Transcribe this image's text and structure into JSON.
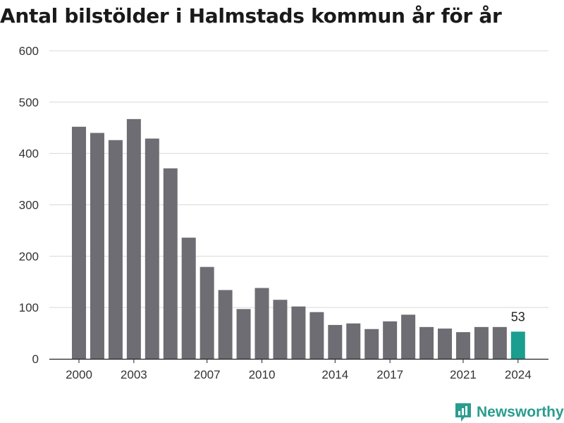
{
  "chart_data": {
    "type": "bar",
    "title": "Antal bilstölder i Halmstads kommun år för år",
    "xlabel": "",
    "ylabel": "",
    "ylim": [
      0,
      600
    ],
    "yticks": [
      "0",
      "100",
      "200",
      "300",
      "400",
      "500",
      "600"
    ],
    "xtick_labels": [
      "2000",
      "2003",
      "2007",
      "2010",
      "2014",
      "2017",
      "2021",
      "2024"
    ],
    "categories": [
      "2000",
      "2001",
      "2002",
      "2003",
      "2004",
      "2005",
      "2006",
      "2007",
      "2008",
      "2009",
      "2010",
      "2011",
      "2012",
      "2013",
      "2014",
      "2015",
      "2016",
      "2017",
      "2018",
      "2019",
      "2020",
      "2021",
      "2022",
      "2023",
      "2024"
    ],
    "values": [
      452,
      440,
      426,
      467,
      429,
      371,
      236,
      179,
      134,
      97,
      138,
      115,
      102,
      91,
      66,
      69,
      58,
      73,
      86,
      62,
      59,
      52,
      62,
      62,
      53
    ],
    "highlight_category": "2024",
    "data_label": "53",
    "colors": {
      "bar": "#6e6d73",
      "highlight": "#1a9e8f",
      "grid": "#d9d9d9"
    },
    "grid": true
  },
  "brand": {
    "name": "Newsworthy",
    "icon": "newsworthy-logo-icon",
    "color": "#2a9d8f"
  }
}
